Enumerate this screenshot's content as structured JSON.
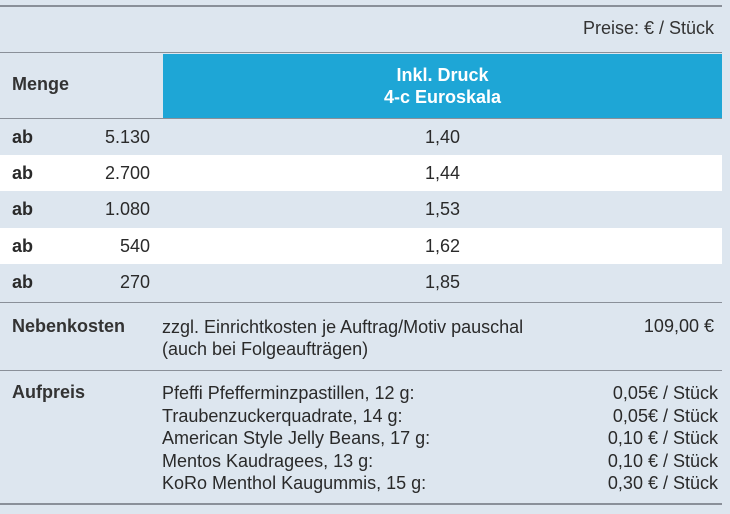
{
  "price_note": "Preise: € / Stück",
  "header": {
    "menge": "Menge",
    "druck_line1": "Inkl. Druck",
    "druck_line2": "4-c Euroskala"
  },
  "rows": [
    {
      "label": "ab",
      "qty": "5.130",
      "price": "1,40"
    },
    {
      "label": "ab",
      "qty": "2.700",
      "price": "1,44"
    },
    {
      "label": "ab",
      "qty": "1.080",
      "price": "1,53"
    },
    {
      "label": "ab",
      "qty": "540",
      "price": "1,62"
    },
    {
      "label": "ab",
      "qty": "270",
      "price": "1,85"
    }
  ],
  "nebenkosten": {
    "label": "Nebenkosten",
    "text_line1": "zzgl. Einrichtkosten je Auftrag/Motiv pauschal",
    "text_line2": "(auch bei Folgeaufträgen)",
    "amount": "109,00 €"
  },
  "aufpreis": {
    "label": "Aufpreis",
    "items": [
      {
        "name": "Pfeffi Pfefferminzpastillen, 12 g:",
        "value": "0,05€ / Stück"
      },
      {
        "name": "Traubenzuckerquadrate, 14 g:",
        "value": "0,05€ / Stück"
      },
      {
        "name": "American Style Jelly Beans, 17 g:",
        "value": "0,10 € / Stück"
      },
      {
        "name": "Mentos Kaudragees, 13 g:",
        "value": "0,10 € / Stück"
      },
      {
        "name": "KoRo Menthol Kaugummis, 15 g:",
        "value": "0,30 € / Stück"
      }
    ]
  }
}
